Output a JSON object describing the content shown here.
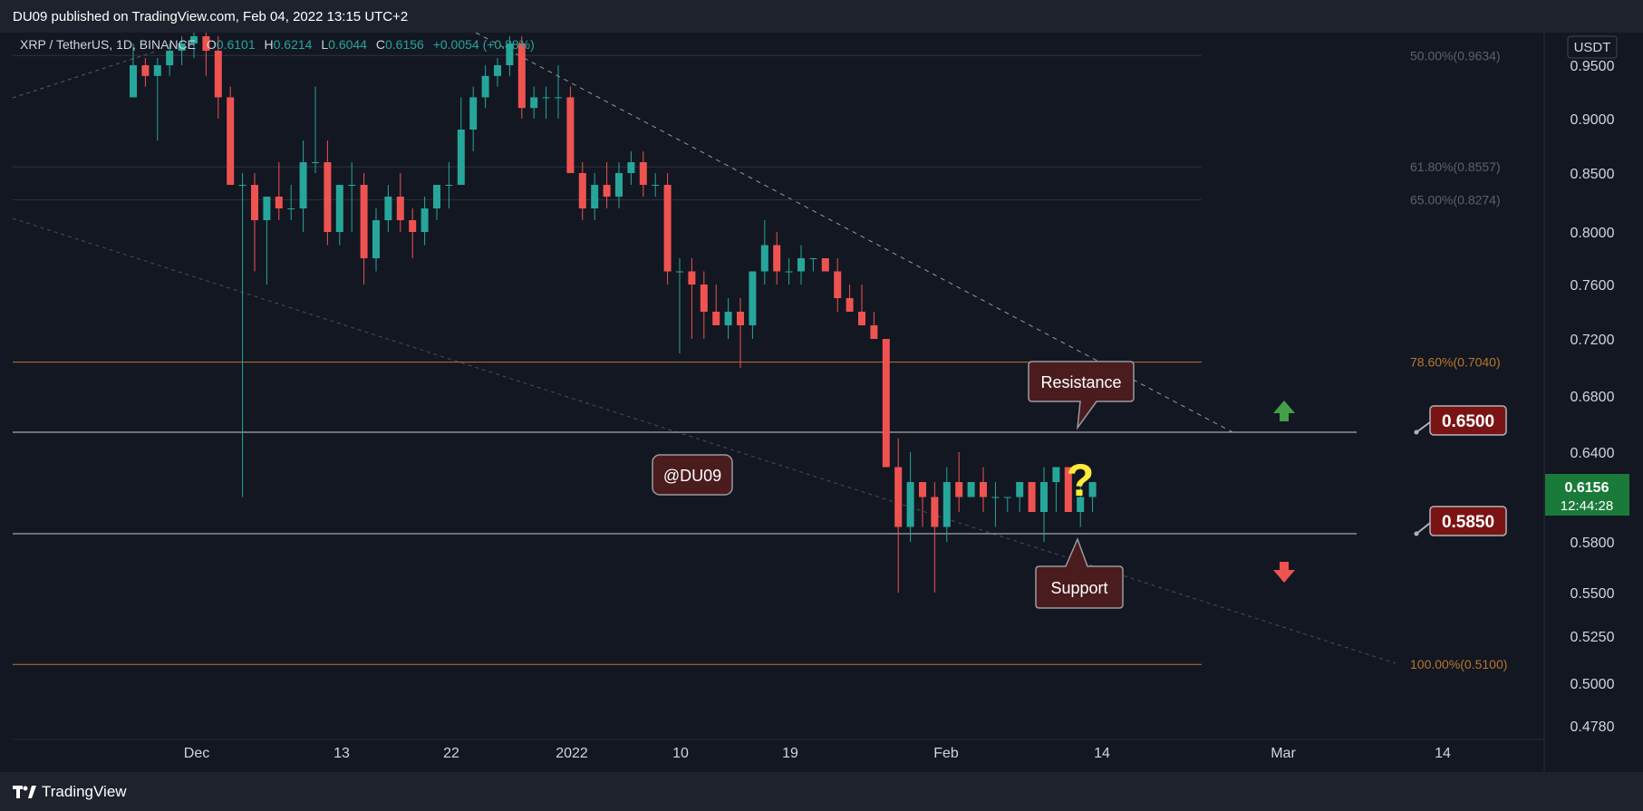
{
  "header": {
    "published": "DU09 published on TradingView.com, Feb 04, 2022 13:15 UTC+2"
  },
  "footer": {
    "brand": "TradingView"
  },
  "symbol": {
    "name": "XRP / TetherUS, 1D, BINANCE",
    "open_label": "O",
    "open": "0.6101",
    "high_label": "H",
    "high": "0.6214",
    "low_label": "L",
    "low": "0.6044",
    "close_label": "C",
    "close": "0.6156",
    "change": "+0.0054 (+0.88%)"
  },
  "price_axis": {
    "currency": "USDT",
    "ticks": [
      "0.9500",
      "0.9000",
      "0.8500",
      "0.8000",
      "0.7600",
      "0.7200",
      "0.6800",
      "0.6400",
      "0.5800",
      "0.5500",
      "0.5250",
      "0.5000",
      "0.4780"
    ],
    "current_price": "0.6156",
    "countdown": "12:44:28"
  },
  "time_axis": {
    "ticks": [
      "Dec",
      "13",
      "22",
      "2022",
      "10",
      "19",
      "Feb",
      "14",
      "Mar",
      "14"
    ]
  },
  "fibonacci": [
    {
      "label": "50.00%(0.9634)",
      "value": 0.9634
    },
    {
      "label": "61.80%(0.8557)",
      "value": 0.8557
    },
    {
      "label": "65.00%(0.8274)",
      "value": 0.8274
    },
    {
      "label": "78.60%(0.7040)",
      "value": 0.704
    },
    {
      "label": "100.00%(0.5100)",
      "value": 0.51
    }
  ],
  "annotations": {
    "resistance_label": "Resistance",
    "support_label": "Support",
    "watermark": "@DU09",
    "question": "?",
    "resistance_price": "0.6500",
    "support_price": "0.5850"
  },
  "colors": {
    "up": "#26a69a",
    "down": "#ef5350",
    "fib_orange": "#b8762b",
    "fib_gray": "#5d606b",
    "callout_fill": "#4a1c1e",
    "price_badge": "#7a1414",
    "current_badge": "#1a7a3a"
  },
  "chart_data": {
    "type": "candlestick",
    "title": "XRP / TetherUS, 1D, BINANCE",
    "y_unit": "USDT",
    "ylim": [
      0.478,
      0.96
    ],
    "x_start": "2021-11-24",
    "candles": [
      {
        "o": 0.92,
        "h": 0.98,
        "l": 0.92,
        "c": 0.95
      },
      {
        "o": 0.95,
        "h": 0.96,
        "l": 0.93,
        "c": 0.94
      },
      {
        "o": 0.94,
        "h": 0.96,
        "l": 0.88,
        "c": 0.95
      },
      {
        "o": 0.95,
        "h": 0.98,
        "l": 0.94,
        "c": 0.97
      },
      {
        "o": 0.97,
        "h": 0.99,
        "l": 0.95,
        "c": 0.98
      },
      {
        "o": 0.98,
        "h": 1.0,
        "l": 0.96,
        "c": 0.99
      },
      {
        "o": 0.99,
        "h": 1.0,
        "l": 0.94,
        "c": 0.97
      },
      {
        "o": 0.97,
        "h": 0.99,
        "l": 0.9,
        "c": 0.92
      },
      {
        "o": 0.92,
        "h": 0.93,
        "l": 0.84,
        "c": 0.84
      },
      {
        "o": 0.84,
        "h": 0.85,
        "l": 0.61,
        "c": 0.84
      },
      {
        "o": 0.84,
        "h": 0.85,
        "l": 0.77,
        "c": 0.81
      },
      {
        "o": 0.81,
        "h": 0.83,
        "l": 0.76,
        "c": 0.83
      },
      {
        "o": 0.83,
        "h": 0.86,
        "l": 0.81,
        "c": 0.82
      },
      {
        "o": 0.82,
        "h": 0.84,
        "l": 0.81,
        "c": 0.82
      },
      {
        "o": 0.82,
        "h": 0.88,
        "l": 0.8,
        "c": 0.86
      },
      {
        "o": 0.86,
        "h": 0.93,
        "l": 0.85,
        "c": 0.86
      },
      {
        "o": 0.86,
        "h": 0.88,
        "l": 0.79,
        "c": 0.8
      },
      {
        "o": 0.8,
        "h": 0.84,
        "l": 0.79,
        "c": 0.84
      },
      {
        "o": 0.84,
        "h": 0.86,
        "l": 0.8,
        "c": 0.84
      },
      {
        "o": 0.84,
        "h": 0.85,
        "l": 0.76,
        "c": 0.78
      },
      {
        "o": 0.78,
        "h": 0.82,
        "l": 0.77,
        "c": 0.81
      },
      {
        "o": 0.81,
        "h": 0.84,
        "l": 0.8,
        "c": 0.83
      },
      {
        "o": 0.83,
        "h": 0.85,
        "l": 0.8,
        "c": 0.81
      },
      {
        "o": 0.81,
        "h": 0.82,
        "l": 0.78,
        "c": 0.8
      },
      {
        "o": 0.8,
        "h": 0.83,
        "l": 0.79,
        "c": 0.82
      },
      {
        "o": 0.82,
        "h": 0.84,
        "l": 0.81,
        "c": 0.84
      },
      {
        "o": 0.84,
        "h": 0.86,
        "l": 0.82,
        "c": 0.84
      },
      {
        "o": 0.84,
        "h": 0.92,
        "l": 0.84,
        "c": 0.89
      },
      {
        "o": 0.89,
        "h": 0.93,
        "l": 0.87,
        "c": 0.92
      },
      {
        "o": 0.92,
        "h": 0.95,
        "l": 0.91,
        "c": 0.94
      },
      {
        "o": 0.94,
        "h": 0.96,
        "l": 0.93,
        "c": 0.95
      },
      {
        "o": 0.95,
        "h": 0.99,
        "l": 0.94,
        "c": 0.98
      },
      {
        "o": 0.98,
        "h": 0.99,
        "l": 0.9,
        "c": 0.91
      },
      {
        "o": 0.91,
        "h": 0.93,
        "l": 0.9,
        "c": 0.92
      },
      {
        "o": 0.92,
        "h": 0.93,
        "l": 0.9,
        "c": 0.92
      },
      {
        "o": 0.92,
        "h": 0.95,
        "l": 0.9,
        "c": 0.92
      },
      {
        "o": 0.92,
        "h": 0.93,
        "l": 0.85,
        "c": 0.85
      },
      {
        "o": 0.85,
        "h": 0.86,
        "l": 0.81,
        "c": 0.82
      },
      {
        "o": 0.82,
        "h": 0.85,
        "l": 0.81,
        "c": 0.84
      },
      {
        "o": 0.84,
        "h": 0.86,
        "l": 0.82,
        "c": 0.83
      },
      {
        "o": 0.83,
        "h": 0.86,
        "l": 0.82,
        "c": 0.85
      },
      {
        "o": 0.85,
        "h": 0.87,
        "l": 0.84,
        "c": 0.86
      },
      {
        "o": 0.86,
        "h": 0.87,
        "l": 0.83,
        "c": 0.84
      },
      {
        "o": 0.84,
        "h": 0.85,
        "l": 0.83,
        "c": 0.84
      },
      {
        "o": 0.84,
        "h": 0.85,
        "l": 0.76,
        "c": 0.77
      },
      {
        "o": 0.77,
        "h": 0.78,
        "l": 0.71,
        "c": 0.77
      },
      {
        "o": 0.77,
        "h": 0.78,
        "l": 0.72,
        "c": 0.76
      },
      {
        "o": 0.76,
        "h": 0.77,
        "l": 0.72,
        "c": 0.74
      },
      {
        "o": 0.74,
        "h": 0.76,
        "l": 0.73,
        "c": 0.73
      },
      {
        "o": 0.73,
        "h": 0.75,
        "l": 0.72,
        "c": 0.74
      },
      {
        "o": 0.74,
        "h": 0.75,
        "l": 0.7,
        "c": 0.73
      },
      {
        "o": 0.73,
        "h": 0.77,
        "l": 0.72,
        "c": 0.77
      },
      {
        "o": 0.77,
        "h": 0.81,
        "l": 0.76,
        "c": 0.79
      },
      {
        "o": 0.79,
        "h": 0.8,
        "l": 0.76,
        "c": 0.77
      },
      {
        "o": 0.77,
        "h": 0.78,
        "l": 0.76,
        "c": 0.77
      },
      {
        "o": 0.77,
        "h": 0.79,
        "l": 0.76,
        "c": 0.78
      },
      {
        "o": 0.78,
        "h": 0.78,
        "l": 0.77,
        "c": 0.78
      },
      {
        "o": 0.78,
        "h": 0.78,
        "l": 0.77,
        "c": 0.77
      },
      {
        "o": 0.77,
        "h": 0.78,
        "l": 0.74,
        "c": 0.75
      },
      {
        "o": 0.75,
        "h": 0.76,
        "l": 0.74,
        "c": 0.74
      },
      {
        "o": 0.74,
        "h": 0.76,
        "l": 0.73,
        "c": 0.73
      },
      {
        "o": 0.73,
        "h": 0.74,
        "l": 0.72,
        "c": 0.72
      },
      {
        "o": 0.72,
        "h": 0.72,
        "l": 0.63,
        "c": 0.63
      },
      {
        "o": 0.63,
        "h": 0.65,
        "l": 0.55,
        "c": 0.59
      },
      {
        "o": 0.59,
        "h": 0.64,
        "l": 0.58,
        "c": 0.62
      },
      {
        "o": 0.62,
        "h": 0.62,
        "l": 0.59,
        "c": 0.61
      },
      {
        "o": 0.61,
        "h": 0.62,
        "l": 0.55,
        "c": 0.59
      },
      {
        "o": 0.59,
        "h": 0.63,
        "l": 0.58,
        "c": 0.62
      },
      {
        "o": 0.62,
        "h": 0.64,
        "l": 0.6,
        "c": 0.61
      },
      {
        "o": 0.61,
        "h": 0.62,
        "l": 0.61,
        "c": 0.62
      },
      {
        "o": 0.62,
        "h": 0.63,
        "l": 0.6,
        "c": 0.61
      },
      {
        "o": 0.61,
        "h": 0.62,
        "l": 0.59,
        "c": 0.61
      },
      {
        "o": 0.61,
        "h": 0.61,
        "l": 0.6,
        "c": 0.61
      },
      {
        "o": 0.61,
        "h": 0.62,
        "l": 0.6,
        "c": 0.62
      },
      {
        "o": 0.62,
        "h": 0.62,
        "l": 0.6,
        "c": 0.6
      },
      {
        "o": 0.6,
        "h": 0.63,
        "l": 0.58,
        "c": 0.62
      },
      {
        "o": 0.62,
        "h": 0.63,
        "l": 0.6,
        "c": 0.63
      },
      {
        "o": 0.63,
        "h": 0.63,
        "l": 0.6,
        "c": 0.6
      },
      {
        "o": 0.6,
        "h": 0.62,
        "l": 0.59,
        "c": 0.61
      },
      {
        "o": 0.61,
        "h": 0.62,
        "l": 0.6,
        "c": 0.62
      }
    ]
  }
}
